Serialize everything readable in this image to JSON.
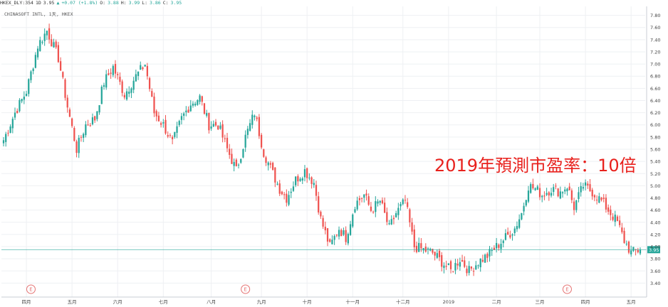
{
  "header": {
    "symbol": "HKEX_DLY:354",
    "interval": "1D",
    "last": "3.95",
    "arrow": "▲",
    "change": "+0.07 (+1.8%)",
    "open_label": "O:",
    "open": "3.88",
    "high_label": "H:",
    "high": "3.99",
    "low_label": "L:",
    "low": "3.86",
    "close_label": "C:",
    "close": "3.95"
  },
  "legend": {
    "text": "CHINASOFT INTL, 1天, HKEX"
  },
  "annotation": "2019年預測市盈率：10倍",
  "colors": {
    "up": "#26a69a",
    "down": "#ef5350",
    "grid": "#eef0f3",
    "price_line": "#26a69a",
    "annotation": "#e8211d",
    "earnings_marker": "#e57373"
  },
  "chart_data": {
    "type": "candlestick",
    "ylim": [
      3.3,
      7.9
    ],
    "yticks": [
      "3.40",
      "3.60",
      "3.80",
      "4.00",
      "4.20",
      "4.40",
      "4.60",
      "4.80",
      "5.00",
      "5.20",
      "5.40",
      "5.60",
      "5.80",
      "6.00",
      "6.20",
      "6.40",
      "6.60",
      "6.80",
      "7.00",
      "7.20",
      "7.40",
      "7.60",
      "7.80"
    ],
    "last_price_label": "3.95",
    "last_price": 3.95,
    "xticks": [
      {
        "label": "四月",
        "index": 10
      },
      {
        "label": "五月",
        "index": 30
      },
      {
        "label": "六月",
        "index": 50
      },
      {
        "label": "七月",
        "index": 70
      },
      {
        "label": "八月",
        "index": 91
      },
      {
        "label": "九月",
        "index": 113
      },
      {
        "label": "十月",
        "index": 133
      },
      {
        "label": "十一月",
        "index": 153
      },
      {
        "label": "十二月",
        "index": 175
      },
      {
        "label": "2019",
        "index": 195
      },
      {
        "label": "二月",
        "index": 216
      },
      {
        "label": "三月",
        "index": 235
      },
      {
        "label": "四月",
        "index": 255
      },
      {
        "label": "五月",
        "index": 275
      }
    ],
    "earnings_markers": [
      {
        "label": "E",
        "index": 12
      },
      {
        "label": "E",
        "index": 106
      },
      {
        "label": "E",
        "index": 247
      }
    ],
    "waypoints": [
      [
        0,
        5.75
      ],
      [
        5,
        6.2
      ],
      [
        10,
        6.55
      ],
      [
        15,
        7.3
      ],
      [
        19,
        7.55
      ],
      [
        24,
        7.1
      ],
      [
        28,
        6.3
      ],
      [
        32,
        5.6
      ],
      [
        36,
        6.0
      ],
      [
        40,
        6.1
      ],
      [
        44,
        6.7
      ],
      [
        48,
        6.95
      ],
      [
        53,
        6.5
      ],
      [
        58,
        6.8
      ],
      [
        62,
        7.0
      ],
      [
        66,
        6.2
      ],
      [
        70,
        6.0
      ],
      [
        74,
        5.7
      ],
      [
        78,
        6.1
      ],
      [
        82,
        6.35
      ],
      [
        86,
        6.45
      ],
      [
        90,
        6.0
      ],
      [
        94,
        6.0
      ],
      [
        98,
        5.6
      ],
      [
        102,
        5.25
      ],
      [
        106,
        5.8
      ],
      [
        110,
        6.2
      ],
      [
        114,
        5.55
      ],
      [
        118,
        5.2
      ],
      [
        121,
        4.95
      ],
      [
        124,
        4.8
      ],
      [
        128,
        5.1
      ],
      [
        132,
        5.25
      ],
      [
        136,
        5.05
      ],
      [
        139,
        4.45
      ],
      [
        143,
        4.0
      ],
      [
        147,
        4.3
      ],
      [
        150,
        4.15
      ],
      [
        154,
        4.7
      ],
      [
        158,
        4.85
      ],
      [
        161,
        4.6
      ],
      [
        165,
        4.75
      ],
      [
        169,
        4.3
      ],
      [
        172,
        4.55
      ],
      [
        176,
        4.75
      ],
      [
        180,
        4.0
      ],
      [
        184,
        3.95
      ],
      [
        188,
        3.9
      ],
      [
        192,
        3.75
      ],
      [
        196,
        3.6
      ],
      [
        200,
        3.8
      ],
      [
        204,
        3.6
      ],
      [
        208,
        3.75
      ],
      [
        212,
        3.85
      ],
      [
        216,
        4.0
      ],
      [
        220,
        4.15
      ],
      [
        224,
        4.3
      ],
      [
        227,
        4.55
      ],
      [
        230,
        5.0
      ],
      [
        233,
        4.95
      ],
      [
        236,
        4.85
      ],
      [
        240,
        4.95
      ],
      [
        244,
        4.9
      ],
      [
        247,
        5.0
      ],
      [
        250,
        4.65
      ],
      [
        254,
        5.0
      ],
      [
        258,
        4.9
      ],
      [
        262,
        4.75
      ],
      [
        266,
        4.55
      ],
      [
        269,
        4.4
      ],
      [
        272,
        4.1
      ],
      [
        275,
        3.9
      ],
      [
        279,
        3.95
      ]
    ]
  }
}
